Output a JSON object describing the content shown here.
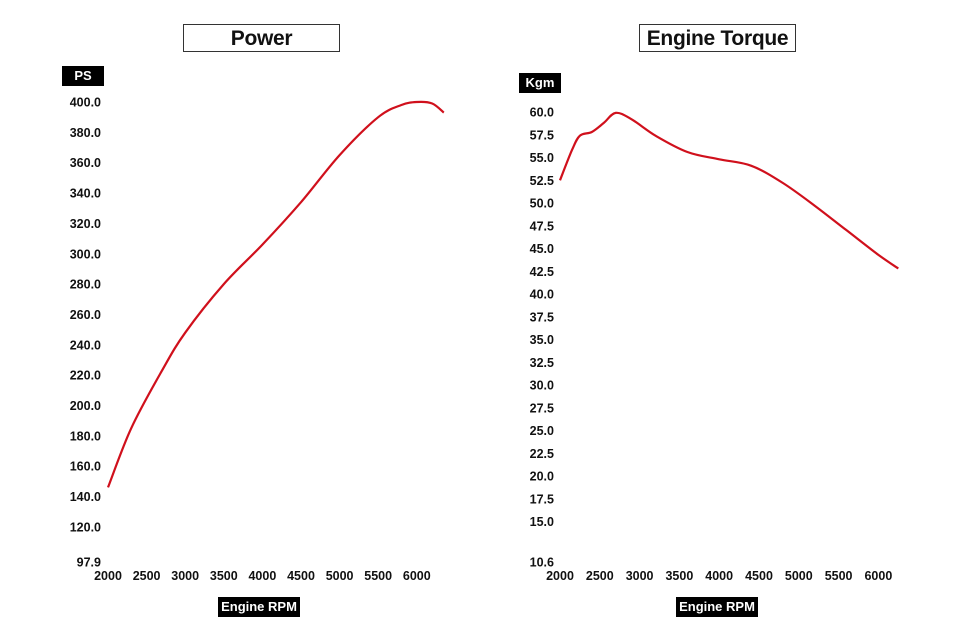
{
  "chart_data": [
    {
      "type": "line",
      "title": "Power",
      "ylabel": "PS",
      "xlabel": "Engine RPM",
      "xlim": [
        2000,
        6300
      ],
      "ylim": [
        97.9,
        400.0
      ],
      "x_ticks": [
        "2000",
        "2500",
        "3000",
        "3500",
        "4000",
        "4500",
        "5000",
        "5500",
        "6000"
      ],
      "y_ticks": [
        "400.0",
        "380.0",
        "360.0",
        "340.0",
        "320.0",
        "300.0",
        "280.0",
        "260.0",
        "240.0",
        "220.0",
        "200.0",
        "180.0",
        "160.0",
        "140.0",
        "120.0",
        "97.9"
      ],
      "grid": false,
      "legend": "none",
      "color": "#d0101c",
      "series": [
        {
          "x": [
            2000,
            2300,
            2700,
            3000,
            3500,
            4000,
            4500,
            5000,
            5500,
            5800,
            6000,
            6200,
            6350
          ],
          "values": [
            146,
            185,
            223,
            248,
            280,
            306,
            334,
            365,
            390,
            398,
            400,
            399,
            393
          ]
        }
      ]
    },
    {
      "type": "line",
      "title": "Engine Torque",
      "ylabel": "Kgm",
      "xlabel": "Engine RPM",
      "xlim": [
        2000,
        6300
      ],
      "ylim": [
        10.6,
        60.0
      ],
      "x_ticks": [
        "2000",
        "2500",
        "3000",
        "3500",
        "4000",
        "4500",
        "5000",
        "5500",
        "6000"
      ],
      "y_ticks": [
        "60.0",
        "57.5",
        "55.0",
        "52.5",
        "50.0",
        "47.5",
        "45.0",
        "42.5",
        "40.0",
        "37.5",
        "35.0",
        "32.5",
        "30.0",
        "27.5",
        "25.0",
        "22.5",
        "20.0",
        "17.5",
        "15.0",
        "10.6"
      ],
      "grid": false,
      "legend": "none",
      "color": "#d0101c",
      "series": [
        {
          "x": [
            2000,
            2150,
            2250,
            2400,
            2550,
            2700,
            2900,
            3200,
            3600,
            4000,
            4400,
            4800,
            5200,
            5600,
            6000,
            6250
          ],
          "values": [
            52.5,
            55.8,
            57.4,
            57.8,
            58.8,
            59.9,
            59.2,
            57.4,
            55.6,
            54.8,
            54.1,
            52.2,
            49.7,
            47.0,
            44.3,
            42.8
          ]
        }
      ]
    }
  ]
}
